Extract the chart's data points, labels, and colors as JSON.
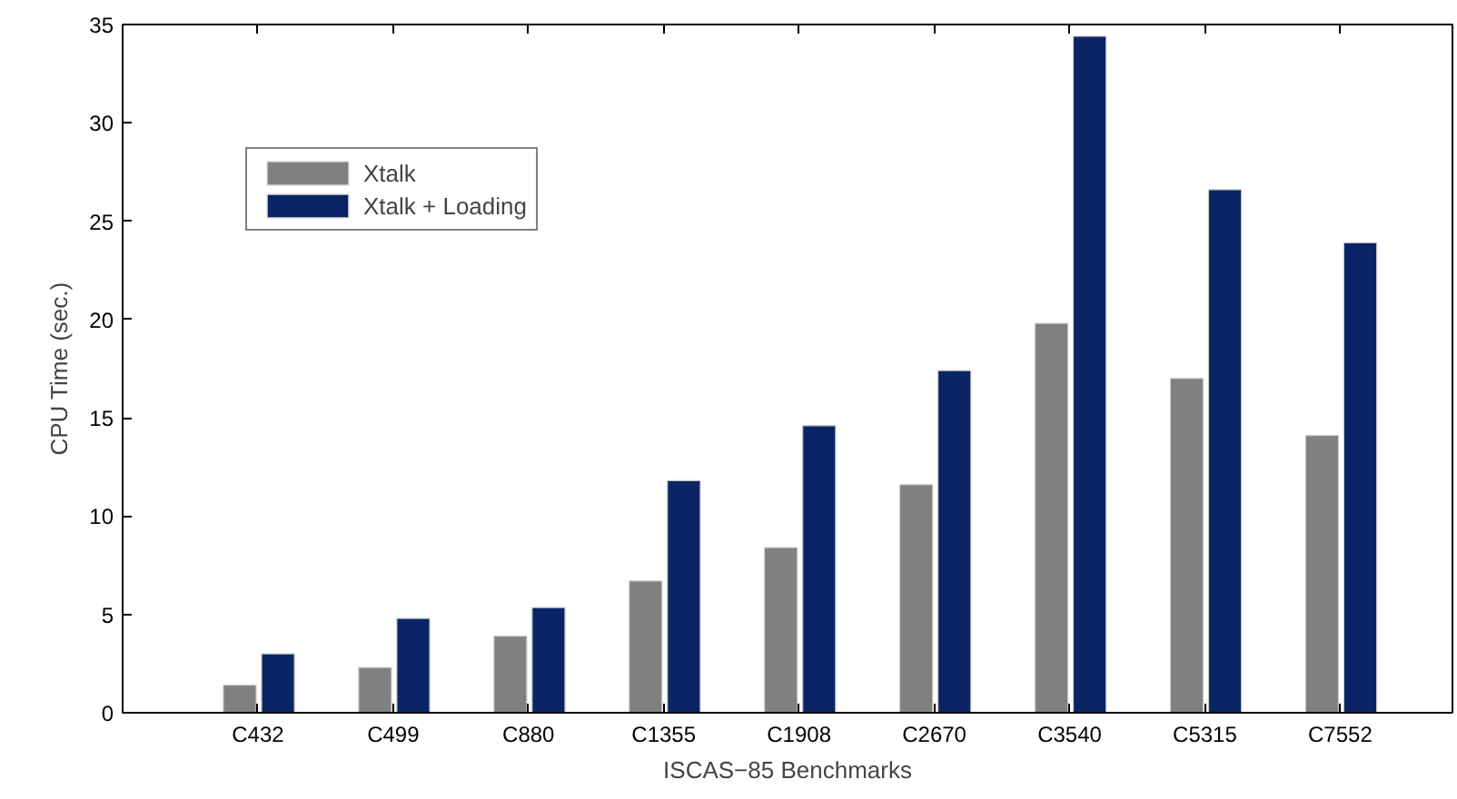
{
  "chart_data": {
    "type": "bar",
    "xlabel": "ISCAS−85 Benchmarks",
    "ylabel": "CPU Time (sec.)",
    "categories": [
      "C432",
      "C499",
      "C880",
      "C1355",
      "C1908",
      "C2670",
      "C3540",
      "C5315",
      "C7552"
    ],
    "series": [
      {
        "name": "Xtalk",
        "color": "#808080",
        "values": [
          1.4,
          2.3,
          3.9,
          6.7,
          8.4,
          11.6,
          19.8,
          17.0,
          14.1
        ]
      },
      {
        "name": "Xtalk + Loading",
        "color": "#0b2466",
        "values": [
          3.0,
          4.8,
          5.35,
          11.8,
          14.6,
          17.4,
          34.4,
          26.6,
          23.9
        ]
      }
    ],
    "ylim": [
      0,
      35
    ],
    "yticks": [
      0,
      5,
      10,
      15,
      20,
      25,
      30,
      35
    ],
    "grid": false,
    "legend": "top left"
  }
}
